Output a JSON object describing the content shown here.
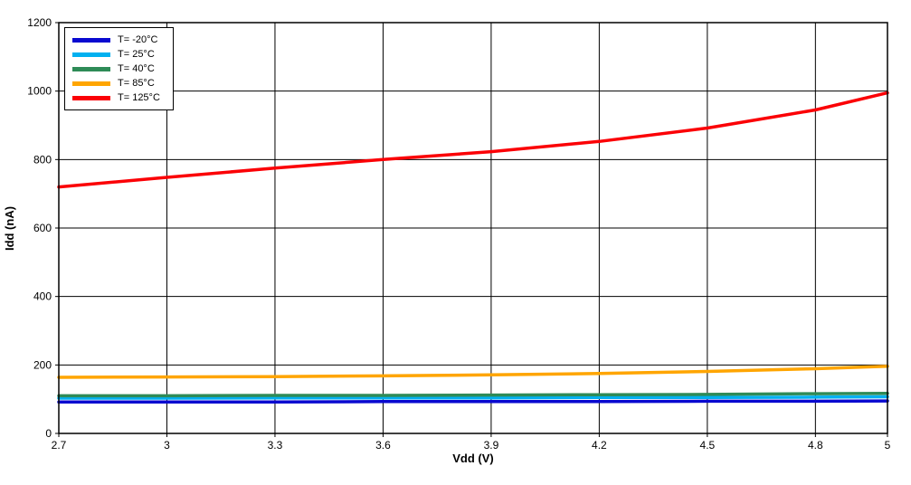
{
  "chart_data": {
    "type": "line",
    "title": "",
    "xlabel": "Vdd (V)",
    "ylabel": "Idd (nA)",
    "xlim": [
      2.7,
      5
    ],
    "ylim": [
      0,
      1200
    ],
    "xticks": [
      2.7,
      3,
      3.3,
      3.6,
      3.9,
      4.2,
      4.5,
      4.8,
      5
    ],
    "xtick_labels": [
      "2.7",
      "3",
      "3.3",
      "3.6",
      "3.9",
      "4.2",
      "4.5",
      "4.8",
      "5"
    ],
    "yticks": [
      0,
      200,
      400,
      600,
      800,
      1000,
      1200
    ],
    "ytick_labels": [
      "0",
      "200",
      "400",
      "600",
      "800",
      "1000",
      "1200"
    ],
    "grid": true,
    "grid_color": "#000000",
    "axis_color": "#000000",
    "background_color": "#ffffff",
    "legend_position": "top-left",
    "x": [
      2.7,
      3,
      3.3,
      3.6,
      3.9,
      4.2,
      4.5,
      4.8,
      5
    ],
    "series": [
      {
        "name": "T= -20°C",
        "color": "#0909d0",
        "values": [
          92,
          92,
          92,
          93,
          93,
          93,
          94,
          94,
          95
        ]
      },
      {
        "name": "T= 25°C",
        "color": "#00b0f0",
        "values": [
          103,
          103,
          104,
          104,
          104,
          105,
          105,
          106,
          107
        ]
      },
      {
        "name": "T= 40°C",
        "color": "#2e8b57",
        "values": [
          110,
          110,
          111,
          111,
          112,
          113,
          114,
          116,
          117
        ]
      },
      {
        "name": "T= 85°C",
        "color": "#ffa500",
        "values": [
          164,
          165,
          166,
          168,
          171,
          175,
          181,
          189,
          196
        ]
      },
      {
        "name": "T= 125°C",
        "color": "#fb0006",
        "values": [
          720,
          748,
          775,
          800,
          823,
          853,
          892,
          945,
          995
        ]
      }
    ]
  }
}
